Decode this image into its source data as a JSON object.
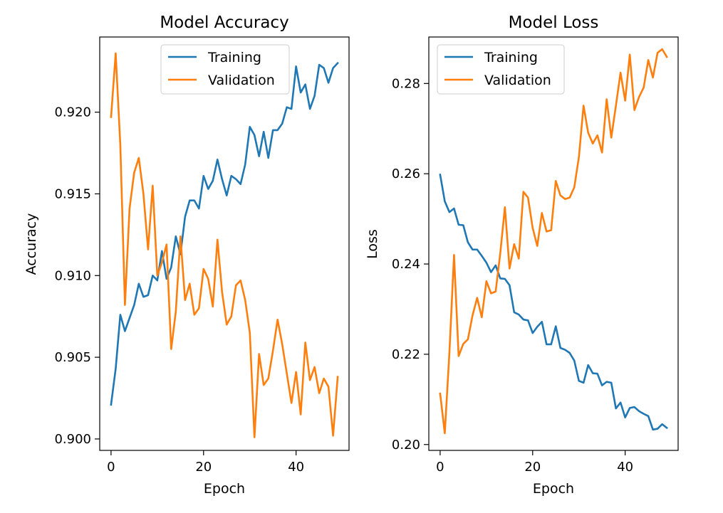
{
  "chart_data": [
    {
      "type": "line",
      "title": "Model Accuracy",
      "xlabel": "Epoch",
      "ylabel": "Accuracy",
      "xlim": [
        -2.45,
        51.45
      ],
      "ylim": [
        0.8993,
        0.9246
      ],
      "xticks": [
        0,
        20,
        40
      ],
      "yticks": [
        0.9,
        0.905,
        0.91,
        0.915,
        0.92
      ],
      "ytick_labels": [
        "0.900",
        "0.905",
        "0.910",
        "0.915",
        "0.920"
      ],
      "legend_position": "upper center",
      "grid": false,
      "x": [
        0,
        1,
        2,
        3,
        4,
        5,
        6,
        7,
        8,
        9,
        10,
        11,
        12,
        13,
        14,
        15,
        16,
        17,
        18,
        19,
        20,
        21,
        22,
        23,
        24,
        25,
        26,
        27,
        28,
        29,
        30,
        31,
        32,
        33,
        34,
        35,
        36,
        37,
        38,
        39,
        40,
        41,
        42,
        43,
        44,
        45,
        46,
        47,
        48,
        49
      ],
      "series": [
        {
          "name": "Training",
          "color": "#1f77b4",
          "values": [
            0.9021,
            0.9043,
            0.9076,
            0.9066,
            0.9074,
            0.9082,
            0.9095,
            0.9087,
            0.9088,
            0.91,
            0.9097,
            0.9115,
            0.9098,
            0.9105,
            0.9124,
            0.9113,
            0.9136,
            0.9146,
            0.9146,
            0.9141,
            0.9161,
            0.9153,
            0.9158,
            0.9171,
            0.9159,
            0.9149,
            0.9161,
            0.9159,
            0.9156,
            0.9168,
            0.9191,
            0.9186,
            0.9173,
            0.9188,
            0.9172,
            0.9189,
            0.9189,
            0.9193,
            0.9203,
            0.9202,
            0.9228,
            0.9212,
            0.9217,
            0.9202,
            0.921,
            0.9229,
            0.9227,
            0.9218,
            0.9227,
            0.923
          ]
        },
        {
          "name": "Validation",
          "color": "#ff7f0e",
          "values": [
            0.9197,
            0.9236,
            0.918,
            0.9082,
            0.9141,
            0.9163,
            0.9172,
            0.915,
            0.9116,
            0.9155,
            0.91,
            0.9108,
            0.9119,
            0.9055,
            0.9078,
            0.9124,
            0.9085,
            0.9095,
            0.9076,
            0.908,
            0.9104,
            0.9098,
            0.9081,
            0.9122,
            0.909,
            0.907,
            0.9075,
            0.9094,
            0.9097,
            0.9085,
            0.9065,
            0.9001,
            0.9052,
            0.9033,
            0.9037,
            0.9054,
            0.9073,
            0.9058,
            0.904,
            0.9022,
            0.9041,
            0.9015,
            0.9059,
            0.9036,
            0.9044,
            0.9028,
            0.9037,
            0.9032,
            0.9002,
            0.9038
          ]
        }
      ]
    },
    {
      "type": "line",
      "title": "Model Loss",
      "xlabel": "Epoch",
      "ylabel": "Loss",
      "xlim": [
        -2.45,
        51.45
      ],
      "ylim": [
        0.1987,
        0.2903
      ],
      "xticks": [
        0,
        20,
        40
      ],
      "yticks": [
        0.2,
        0.22,
        0.24,
        0.26,
        0.28
      ],
      "ytick_labels": [
        "0.20",
        "0.22",
        "0.24",
        "0.26",
        "0.28"
      ],
      "legend_position": "upper left",
      "grid": false,
      "x": [
        0,
        1,
        2,
        3,
        4,
        5,
        6,
        7,
        8,
        9,
        10,
        11,
        12,
        13,
        14,
        15,
        16,
        17,
        18,
        19,
        20,
        21,
        22,
        23,
        24,
        25,
        26,
        27,
        28,
        29,
        30,
        31,
        32,
        33,
        34,
        35,
        36,
        37,
        38,
        39,
        40,
        41,
        42,
        43,
        44,
        45,
        46,
        47,
        48,
        49
      ],
      "series": [
        {
          "name": "Training",
          "color": "#1f77b4",
          "values": [
            0.2598,
            0.2539,
            0.2515,
            0.2523,
            0.2487,
            0.2486,
            0.2448,
            0.2432,
            0.2432,
            0.2418,
            0.2403,
            0.2382,
            0.2397,
            0.2368,
            0.2367,
            0.2353,
            0.2293,
            0.2288,
            0.2277,
            0.2275,
            0.2247,
            0.2261,
            0.2272,
            0.2222,
            0.2222,
            0.2262,
            0.2214,
            0.221,
            0.2203,
            0.2186,
            0.2141,
            0.2137,
            0.2176,
            0.2158,
            0.2157,
            0.2131,
            0.2139,
            0.2137,
            0.208,
            0.2093,
            0.206,
            0.2081,
            0.2083,
            0.2074,
            0.2068,
            0.2063,
            0.2033,
            0.2035,
            0.2045,
            0.2037
          ]
        },
        {
          "name": "Validation",
          "color": "#ff7f0e",
          "values": [
            0.2113,
            0.2025,
            0.2203,
            0.242,
            0.2196,
            0.2223,
            0.2233,
            0.2286,
            0.2325,
            0.2282,
            0.2362,
            0.2335,
            0.2339,
            0.2424,
            0.2526,
            0.239,
            0.2444,
            0.2412,
            0.256,
            0.2547,
            0.248,
            0.244,
            0.2513,
            0.2472,
            0.2475,
            0.2584,
            0.2552,
            0.2544,
            0.2547,
            0.257,
            0.2637,
            0.2751,
            0.2691,
            0.2667,
            0.2685,
            0.2647,
            0.2765,
            0.268,
            0.2751,
            0.2824,
            0.2762,
            0.2864,
            0.2741,
            0.277,
            0.2791,
            0.2852,
            0.2813,
            0.2868,
            0.2876,
            0.2859
          ]
        }
      ]
    }
  ]
}
